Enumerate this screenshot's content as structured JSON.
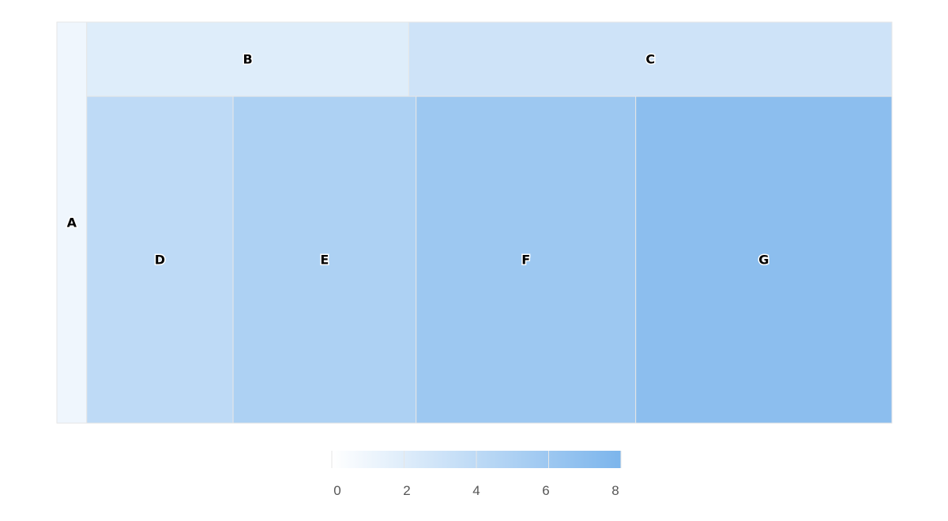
{
  "chart_data": {
    "type": "treemap",
    "title": "",
    "cells": [
      {
        "name": "A",
        "value": 1
      },
      {
        "name": "B",
        "value": 2
      },
      {
        "name": "C",
        "value": 3
      },
      {
        "name": "D",
        "value": 4
      },
      {
        "name": "E",
        "value": 5
      },
      {
        "name": "F",
        "value": 6
      },
      {
        "name": "G",
        "value": 7
      }
    ],
    "color_axis": {
      "min": 0,
      "max": 8,
      "ticks": [
        "0",
        "2",
        "4",
        "6",
        "8"
      ],
      "min_color": "#ffffff",
      "max_color": "#7cb5ec"
    },
    "legend": "bottom-center"
  }
}
